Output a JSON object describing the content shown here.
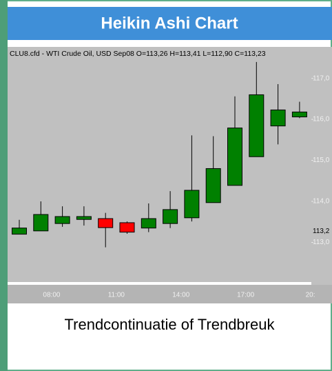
{
  "chart_data": {
    "type": "candlestick",
    "title": "Heikin Ashi Chart",
    "subtitle": "CLU8.cfd - WTI Crude Oil, USD Sep08 O=113,26 H=113,41 L=112,90 C=113,23",
    "caption": "Trendcontinuatie of Trendbreuk",
    "categories": [
      null,
      null,
      null,
      null,
      null,
      null,
      null,
      null,
      null,
      null,
      null,
      null,
      null,
      null
    ],
    "open": [
      113.2,
      113.28,
      113.46,
      113.56,
      113.58,
      113.48,
      113.35,
      113.46,
      113.6,
      113.97,
      114.39,
      115.09,
      115.84,
      116.06
    ],
    "high": [
      113.55,
      114.0,
      113.88,
      113.88,
      113.72,
      113.51,
      113.95,
      114.25,
      115.61,
      115.59,
      116.56,
      117.4,
      116.86,
      116.43
    ],
    "low": [
      113.2,
      113.28,
      113.38,
      113.41,
      112.88,
      113.21,
      113.25,
      113.35,
      113.51,
      113.97,
      114.39,
      115.09,
      115.39,
      116.03
    ],
    "close": [
      113.35,
      113.68,
      113.63,
      113.63,
      113.36,
      113.25,
      113.58,
      113.8,
      114.27,
      114.8,
      115.79,
      116.6,
      116.23,
      116.18
    ],
    "up_color": "#008000",
    "down_color": "#ff0000",
    "x_labels": [
      "08:00",
      "11:00",
      "14:00",
      "17:00",
      "20:"
    ],
    "ylim": [
      112.1,
      117.65
    ],
    "yticks": [
      {
        "value": 113,
        "label": "113,0"
      },
      {
        "value": 114,
        "label": "114,0"
      },
      {
        "value": 115,
        "label": "115,0"
      },
      {
        "value": 116,
        "label": "116,0"
      },
      {
        "value": 117,
        "label": "117,0"
      }
    ],
    "last_price": {
      "value": 113.2,
      "label": "113,2"
    }
  }
}
